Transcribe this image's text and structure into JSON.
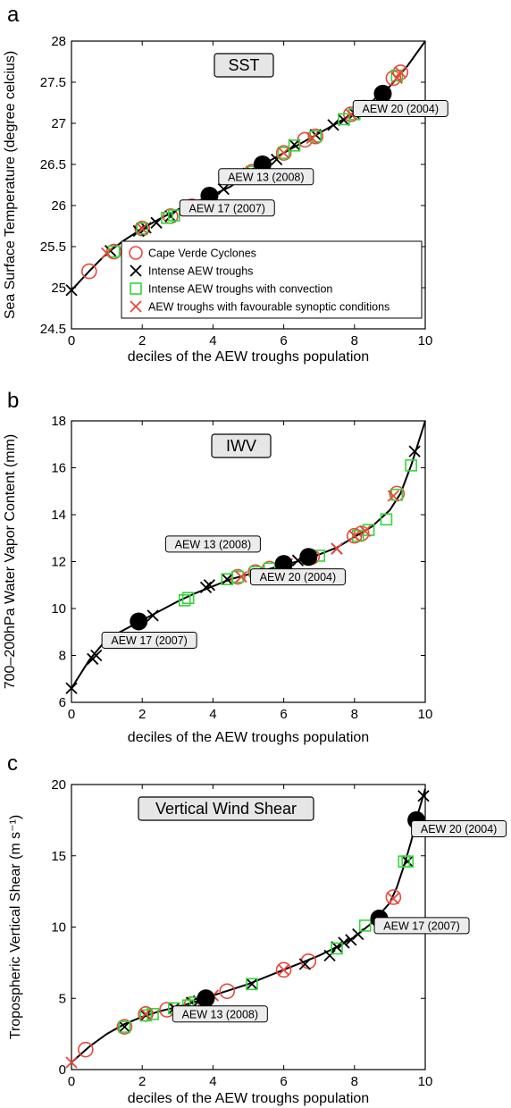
{
  "colors": {
    "cape_verde": "#e8473b",
    "intense": "#000000",
    "convection": "#34d63a",
    "favourable": "#e8473b",
    "highlight": "#000000",
    "box_fill": "#e6e6e6"
  },
  "legend": {
    "items": [
      {
        "key": "cape_verde",
        "label": "Cape Verde Cyclones"
      },
      {
        "key": "intense",
        "label": "Intense AEW troughs"
      },
      {
        "key": "convection",
        "label": "Intense AEW troughs with convection"
      },
      {
        "key": "favourable",
        "label": "AEW troughs with favourable synoptic conditions"
      }
    ]
  },
  "chart_data": [
    {
      "type": "line",
      "panel_letter": "a",
      "title": "SST",
      "xlabel": "deciles of the AEW troughs population",
      "ylabel": "Sea Surface Temperature (degree celcius)",
      "xlim": [
        0,
        10
      ],
      "ylim": [
        24.5,
        28
      ],
      "xticks": [
        "0",
        "2",
        "4",
        "6",
        "8",
        "10"
      ],
      "yticks": [
        "24.5",
        "25",
        "25.5",
        "26",
        "26.5",
        "27",
        "27.5",
        "28"
      ],
      "curve": {
        "x": [
          0,
          0.5,
          1,
          1.5,
          2,
          2.5,
          3,
          3.5,
          4,
          4.5,
          5,
          5.5,
          6,
          6.5,
          7,
          7.5,
          8,
          8.5,
          9,
          9.5,
          10
        ],
        "y": [
          24.97,
          25.2,
          25.42,
          25.58,
          25.72,
          25.84,
          25.95,
          26.04,
          26.13,
          26.23,
          26.4,
          26.52,
          26.64,
          26.76,
          26.88,
          27.0,
          27.13,
          27.27,
          27.45,
          27.7,
          28.0
        ]
      },
      "series": [
        {
          "name": "Cape Verde Cyclones",
          "x": [
            0.5,
            1.2,
            2.0,
            2.8,
            3.4,
            5.1,
            6.0,
            6.6,
            6.9,
            7.9,
            9.1,
            9.3
          ],
          "y": [
            25.2,
            25.44,
            25.72,
            25.87,
            25.99,
            26.41,
            26.64,
            26.8,
            26.84,
            27.11,
            27.55,
            27.62
          ]
        },
        {
          "name": "Intense AEW troughs",
          "x": [
            0,
            1.1,
            1.9,
            2.1,
            2.4,
            2.8,
            4.3,
            5.0,
            5.8,
            6.3,
            6.9,
            7.4,
            7.7,
            8.0
          ],
          "y": [
            24.97,
            25.45,
            25.69,
            25.73,
            25.79,
            25.87,
            26.2,
            26.39,
            26.56,
            26.74,
            26.86,
            26.98,
            27.04,
            27.12
          ]
        },
        {
          "name": "Intense AEW troughs with convection",
          "x": [
            1.2,
            2.0,
            2.7,
            2.9,
            5.1,
            6.0,
            6.3,
            6.9,
            7.7,
            8.0,
            9.2
          ],
          "y": [
            25.44,
            25.72,
            25.85,
            25.88,
            26.41,
            26.64,
            26.73,
            26.84,
            27.05,
            27.11,
            27.58
          ]
        },
        {
          "name": "AEW troughs with favourable synoptic conditions",
          "x": [
            1.0,
            2.0,
            3.4,
            5.1,
            6.0,
            6.8,
            7.9,
            8.2,
            8.4,
            9.2,
            9.3
          ],
          "y": [
            25.42,
            25.72,
            25.99,
            26.41,
            26.64,
            26.82,
            27.11,
            27.18,
            27.22,
            27.55,
            27.62
          ]
        }
      ],
      "highlights": [
        {
          "label": "AEW 17 (2007)",
          "x": 3.9,
          "y": 26.12,
          "lx": 4.4,
          "ly": 25.97
        },
        {
          "label": "AEW 13 (2008)",
          "x": 5.4,
          "y": 26.5,
          "lx": 5.5,
          "ly": 26.35
        },
        {
          "label": "AEW 20 (2004)",
          "x": 8.8,
          "y": 27.36,
          "lx": 9.3,
          "ly": 27.18
        }
      ]
    },
    {
      "type": "line",
      "panel_letter": "b",
      "title": "IWV",
      "xlabel": "deciles of the AEW troughs population",
      "ylabel": "700–200hPa Water Vapor Content (mm)",
      "xlim": [
        0,
        10
      ],
      "ylim": [
        6,
        18
      ],
      "xticks": [
        "0",
        "2",
        "4",
        "6",
        "8",
        "10"
      ],
      "yticks": [
        "6",
        "8",
        "10",
        "12",
        "14",
        "16",
        "18"
      ],
      "curve": {
        "x": [
          0,
          0.5,
          1,
          1.5,
          2,
          2.5,
          3,
          3.5,
          4,
          4.5,
          5,
          5.5,
          6,
          6.5,
          7,
          7.5,
          8,
          8.5,
          9,
          9.3,
          9.6,
          10
        ],
        "y": [
          6.6,
          7.8,
          8.7,
          9.1,
          9.5,
          9.9,
          10.3,
          10.65,
          10.95,
          11.25,
          11.45,
          11.65,
          11.85,
          12.05,
          12.3,
          12.6,
          13.05,
          13.5,
          14.2,
          14.9,
          16.1,
          18.0
        ]
      },
      "series": [
        {
          "name": "Cape Verde Cyclones",
          "x": [
            1.9,
            4.7,
            5.2,
            5.6,
            6.0,
            6.8,
            8.0,
            8.2,
            9.2
          ],
          "y": [
            9.45,
            11.35,
            11.55,
            11.7,
            11.85,
            12.2,
            13.1,
            13.2,
            14.9
          ]
        },
        {
          "name": "Intense AEW troughs",
          "x": [
            0,
            0.6,
            0.7,
            2.3,
            3.8,
            3.9,
            4.4,
            6.4,
            7.5,
            9.7
          ],
          "y": [
            6.6,
            7.85,
            8.0,
            9.7,
            10.9,
            11.0,
            11.25,
            12.05,
            12.55,
            16.7
          ]
        },
        {
          "name": "Intense AEW troughs with convection",
          "x": [
            3.2,
            3.3,
            4.4,
            4.7,
            5.2,
            5.6,
            6.0,
            7.0,
            8.1,
            8.4,
            8.9,
            9.2,
            9.6
          ],
          "y": [
            10.35,
            10.45,
            11.25,
            11.35,
            11.55,
            11.7,
            11.85,
            12.25,
            13.1,
            13.35,
            13.8,
            14.85,
            16.1
          ]
        },
        {
          "name": "AEW troughs with favourable synoptic conditions",
          "x": [
            4.8,
            6.1,
            6.8,
            7.5,
            8.0,
            8.3,
            9.1
          ],
          "y": [
            11.35,
            11.9,
            12.2,
            12.55,
            13.1,
            13.3,
            14.8
          ]
        }
      ],
      "highlights": [
        {
          "label": "AEW 17 (2007)",
          "x": 1.9,
          "y": 9.45,
          "lx": 2.2,
          "ly": 8.65
        },
        {
          "label": "AEW 13 (2008)",
          "x": 6.0,
          "y": 11.9,
          "lx": 4.0,
          "ly": 12.75
        },
        {
          "label": "AEW 20 (2004)",
          "x": 6.7,
          "y": 12.2,
          "lx": 6.4,
          "ly": 11.35
        }
      ]
    },
    {
      "type": "line",
      "panel_letter": "c",
      "title": "Vertical Wind Shear",
      "xlabel": "deciles of the AEW troughs population",
      "ylabel": "Tropospheric Vertical Shear (m s⁻¹)",
      "xlim": [
        0,
        10
      ],
      "ylim": [
        0,
        20
      ],
      "xticks": [
        "0",
        "2",
        "4",
        "6",
        "8",
        "10"
      ],
      "yticks": [
        "0",
        "5",
        "10",
        "15",
        "20"
      ],
      "curve": {
        "x": [
          0,
          0.5,
          1,
          1.5,
          2,
          2.5,
          3,
          3.5,
          4,
          4.5,
          5,
          5.5,
          6,
          6.5,
          7,
          7.5,
          8,
          8.5,
          9,
          9.2,
          9.4,
          9.6,
          9.8,
          10
        ],
        "y": [
          0.5,
          1.6,
          2.5,
          3.2,
          3.7,
          4.1,
          4.4,
          4.75,
          5.2,
          5.6,
          6.0,
          6.5,
          7.0,
          7.5,
          8.0,
          8.6,
          9.3,
          10.3,
          11.7,
          12.8,
          14.3,
          16.0,
          18.0,
          19.7
        ]
      },
      "series": [
        {
          "name": "Cape Verde Cyclones",
          "x": [
            0.4,
            1.5,
            2.1,
            2.7,
            3.4,
            4.4,
            6.0,
            6.7,
            9.1
          ],
          "y": [
            1.4,
            3.0,
            3.9,
            4.2,
            4.6,
            5.5,
            7.0,
            7.6,
            12.1
          ]
        },
        {
          "name": "Intense AEW troughs",
          "x": [
            1.5,
            2.1,
            2.9,
            3.4,
            3.6,
            5.1,
            6.6,
            7.3,
            7.5,
            7.7,
            7.9,
            8.1,
            9.5,
            9.95
          ],
          "y": [
            3.0,
            3.8,
            4.3,
            4.7,
            4.8,
            6.0,
            7.4,
            8.0,
            8.6,
            8.9,
            9.1,
            9.5,
            14.6,
            19.2
          ]
        },
        {
          "name": "Intense AEW troughs with convection",
          "x": [
            1.5,
            2.1,
            2.3,
            2.9,
            3.3,
            3.5,
            5.1,
            7.5,
            8.3,
            9.4,
            9.5
          ],
          "y": [
            3.0,
            3.8,
            3.9,
            4.3,
            4.5,
            4.7,
            6.0,
            8.5,
            10.1,
            14.6,
            14.6
          ]
        },
        {
          "name": "AEW troughs with favourable synoptic conditions",
          "x": [
            0,
            2.1,
            4.0,
            6.0,
            9.1
          ],
          "y": [
            0.5,
            3.9,
            5.2,
            7.0,
            12.0
          ]
        }
      ],
      "highlights": [
        {
          "label": "AEW 13 (2008)",
          "x": 3.8,
          "y": 5.0,
          "lx": 4.2,
          "ly": 3.9
        },
        {
          "label": "AEW 17 (2007)",
          "x": 8.7,
          "y": 10.6,
          "lx": 9.9,
          "ly": 10.1
        },
        {
          "label": "AEW 20 (2004)",
          "x": 9.75,
          "y": 17.5,
          "lx": 10.95,
          "ly": 16.9
        }
      ]
    }
  ]
}
